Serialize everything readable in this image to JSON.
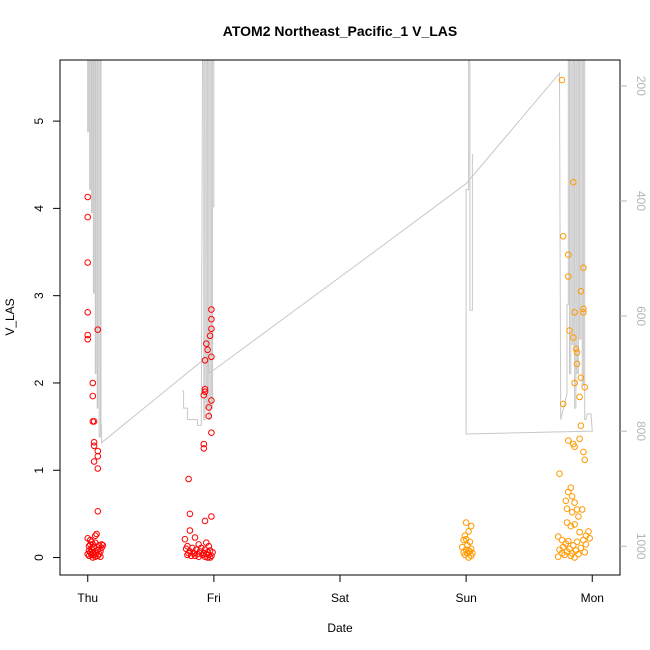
{
  "chart_data": {
    "type": "scatter",
    "title": "ATOM2 Northeast_Pacific_1 V_LAS",
    "xlabel": "Date",
    "ylabel": "V_LAS",
    "x_ticks": [
      "Thu",
      "Fri",
      "Sat",
      "Sun",
      "Mon"
    ],
    "x_tick_values": [
      0,
      1,
      2,
      3,
      4
    ],
    "xlim": [
      -0.22,
      4.22
    ],
    "ylim": [
      -0.2,
      5.7
    ],
    "y_ticks": [
      0,
      1,
      2,
      3,
      4,
      5
    ],
    "y2_ticks": [
      200,
      400,
      600,
      800,
      1000
    ],
    "y2lim": [
      1050,
      155
    ],
    "y2_reversed": true,
    "grid": false,
    "colors": {
      "red": "#ff0000",
      "orange": "#ff9900",
      "line": "#c8c8c8",
      "axis": "#000000",
      "axis2": "#b5b5b5"
    },
    "series": [
      {
        "color": "red",
        "points": [
          [
            0.0,
            4.13
          ],
          [
            0.0,
            3.9
          ],
          [
            0.0,
            3.38
          ],
          [
            0.0,
            2.81
          ],
          [
            0.0,
            2.55
          ],
          [
            0.0,
            2.5
          ],
          [
            0.04,
            2.0
          ],
          [
            0.04,
            1.85
          ],
          [
            0.04,
            1.56
          ],
          [
            0.05,
            1.56
          ],
          [
            0.05,
            1.32
          ],
          [
            0.05,
            1.28
          ],
          [
            0.08,
            2.61
          ],
          [
            0.08,
            1.22
          ],
          [
            0.08,
            1.16
          ],
          [
            0.05,
            1.1
          ],
          [
            0.08,
            1.02
          ],
          [
            0.08,
            0.53
          ],
          [
            0.07,
            0.27
          ],
          [
            0.06,
            0.25
          ],
          [
            0.0,
            0.22
          ],
          [
            0.02,
            0.2
          ],
          [
            0.03,
            0.18
          ],
          [
            0.06,
            0.17
          ],
          [
            0.02,
            0.15
          ],
          [
            0.04,
            0.15
          ],
          [
            0.11,
            0.15
          ],
          [
            0.12,
            0.14
          ],
          [
            0.09,
            0.14
          ],
          [
            0.01,
            0.13
          ],
          [
            0.05,
            0.12
          ],
          [
            0.11,
            0.11
          ],
          [
            0.03,
            0.1
          ],
          [
            0.08,
            0.09
          ],
          [
            0.01,
            0.08
          ],
          [
            0.06,
            0.07
          ],
          [
            0.1,
            0.07
          ],
          [
            0.02,
            0.06
          ],
          [
            0.07,
            0.05
          ],
          [
            0.04,
            0.05
          ],
          [
            0.0,
            0.04
          ],
          [
            0.09,
            0.04
          ],
          [
            0.03,
            0.03
          ],
          [
            0.05,
            0.03
          ],
          [
            0.08,
            0.02
          ],
          [
            0.01,
            0.02
          ],
          [
            0.06,
            0.01
          ],
          [
            0.1,
            0.01
          ],
          [
            0.04,
            0.0
          ],
          [
            0.98,
            2.84
          ],
          [
            0.98,
            2.73
          ],
          [
            0.98,
            2.62
          ],
          [
            0.97,
            2.54
          ],
          [
            0.94,
            2.45
          ],
          [
            0.95,
            2.38
          ],
          [
            0.98,
            2.3
          ],
          [
            0.93,
            2.26
          ],
          [
            0.93,
            1.93
          ],
          [
            0.93,
            1.9
          ],
          [
            0.92,
            1.86
          ],
          [
            0.98,
            1.8
          ],
          [
            0.96,
            1.72
          ],
          [
            0.96,
            1.62
          ],
          [
            0.98,
            1.43
          ],
          [
            0.92,
            1.3
          ],
          [
            0.92,
            1.25
          ],
          [
            0.8,
            0.9
          ],
          [
            0.81,
            0.5
          ],
          [
            0.98,
            0.47
          ],
          [
            0.93,
            0.42
          ],
          [
            0.81,
            0.31
          ],
          [
            0.85,
            0.23
          ],
          [
            0.77,
            0.21
          ],
          [
            0.94,
            0.17
          ],
          [
            0.88,
            0.15
          ],
          [
            0.79,
            0.13
          ],
          [
            0.96,
            0.13
          ],
          [
            0.83,
            0.11
          ],
          [
            0.9,
            0.11
          ],
          [
            0.78,
            0.1
          ],
          [
            0.86,
            0.09
          ],
          [
            0.93,
            0.09
          ],
          [
            0.97,
            0.08
          ],
          [
            0.81,
            0.07
          ],
          [
            0.89,
            0.07
          ],
          [
            0.95,
            0.06
          ],
          [
            0.99,
            0.06
          ],
          [
            0.8,
            0.05
          ],
          [
            0.84,
            0.05
          ],
          [
            0.92,
            0.05
          ],
          [
            0.87,
            0.04
          ],
          [
            0.94,
            0.04
          ],
          [
            0.96,
            0.03
          ],
          [
            0.79,
            0.03
          ],
          [
            0.91,
            0.03
          ],
          [
            0.85,
            0.02
          ],
          [
            0.98,
            0.02
          ],
          [
            0.82,
            0.02
          ],
          [
            0.93,
            0.01
          ],
          [
            0.88,
            0.01
          ],
          [
            0.95,
            0.0
          ],
          [
            0.97,
            0.0
          ]
        ]
      },
      {
        "color": "orange",
        "points": [
          [
            3.0,
            0.4
          ],
          [
            3.04,
            0.36
          ],
          [
            3.02,
            0.3
          ],
          [
            2.99,
            0.25
          ],
          [
            3.0,
            0.21
          ],
          [
            2.98,
            0.2
          ],
          [
            3.03,
            0.18
          ],
          [
            3.01,
            0.14
          ],
          [
            2.97,
            0.12
          ],
          [
            3.04,
            0.1
          ],
          [
            3.0,
            0.09
          ],
          [
            3.02,
            0.08
          ],
          [
            3.03,
            0.07
          ],
          [
            2.98,
            0.06
          ],
          [
            3.05,
            0.05
          ],
          [
            3.01,
            0.05
          ],
          [
            2.99,
            0.03
          ],
          [
            3.04,
            0.02
          ],
          [
            3.02,
            0.0
          ],
          [
            3.76,
            5.47
          ],
          [
            3.85,
            4.3
          ],
          [
            3.77,
            3.68
          ],
          [
            3.81,
            3.47
          ],
          [
            3.81,
            3.22
          ],
          [
            3.93,
            3.32
          ],
          [
            3.91,
            3.05
          ],
          [
            3.93,
            2.85
          ],
          [
            3.93,
            2.81
          ],
          [
            3.86,
            2.81
          ],
          [
            3.82,
            2.6
          ],
          [
            3.85,
            2.52
          ],
          [
            3.87,
            2.39
          ],
          [
            3.88,
            2.35
          ],
          [
            3.88,
            2.22
          ],
          [
            3.91,
            2.06
          ],
          [
            3.86,
            2.0
          ],
          [
            3.94,
            1.95
          ],
          [
            3.9,
            1.84
          ],
          [
            3.77,
            1.76
          ],
          [
            3.91,
            1.51
          ],
          [
            3.81,
            1.34
          ],
          [
            3.85,
            1.3
          ],
          [
            3.9,
            1.36
          ],
          [
            3.86,
            1.27
          ],
          [
            3.93,
            1.21
          ],
          [
            3.94,
            1.12
          ],
          [
            3.74,
            0.96
          ],
          [
            3.83,
            0.8
          ],
          [
            3.81,
            0.75
          ],
          [
            3.84,
            0.7
          ],
          [
            3.79,
            0.65
          ],
          [
            3.86,
            0.63
          ],
          [
            3.8,
            0.56
          ],
          [
            3.88,
            0.55
          ],
          [
            3.92,
            0.55
          ],
          [
            3.84,
            0.52
          ],
          [
            3.89,
            0.47
          ],
          [
            3.8,
            0.4
          ],
          [
            3.86,
            0.38
          ],
          [
            3.83,
            0.36
          ],
          [
            3.97,
            0.3
          ],
          [
            3.9,
            0.29
          ],
          [
            3.95,
            0.25
          ],
          [
            3.73,
            0.24
          ],
          [
            3.98,
            0.22
          ],
          [
            3.76,
            0.2
          ],
          [
            3.93,
            0.2
          ],
          [
            3.81,
            0.19
          ],
          [
            3.88,
            0.18
          ],
          [
            3.79,
            0.16
          ],
          [
            3.95,
            0.15
          ],
          [
            3.85,
            0.14
          ],
          [
            3.77,
            0.12
          ],
          [
            3.91,
            0.11
          ],
          [
            3.82,
            0.1
          ],
          [
            3.74,
            0.09
          ],
          [
            3.87,
            0.08
          ],
          [
            3.8,
            0.07
          ],
          [
            3.94,
            0.06
          ],
          [
            3.76,
            0.05
          ],
          [
            3.84,
            0.05
          ],
          [
            3.89,
            0.04
          ],
          [
            3.78,
            0.03
          ],
          [
            3.83,
            0.02
          ],
          [
            3.73,
            0.01
          ],
          [
            3.86,
            0.0
          ]
        ]
      }
    ],
    "depth_line": [
      [
        0.0,
        155
      ],
      [
        0.0,
        280
      ],
      [
        0.005,
        280
      ],
      [
        0.005,
        155
      ],
      [
        0.015,
        155
      ],
      [
        0.015,
        380
      ],
      [
        0.02,
        380
      ],
      [
        0.02,
        155
      ],
      [
        0.03,
        155
      ],
      [
        0.03,
        420
      ],
      [
        0.035,
        420
      ],
      [
        0.035,
        155
      ],
      [
        0.045,
        155
      ],
      [
        0.045,
        560
      ],
      [
        0.05,
        560
      ],
      [
        0.05,
        155
      ],
      [
        0.06,
        155
      ],
      [
        0.06,
        700
      ],
      [
        0.065,
        700
      ],
      [
        0.065,
        155
      ],
      [
        0.075,
        155
      ],
      [
        0.075,
        760
      ],
      [
        0.08,
        760
      ],
      [
        0.08,
        155
      ],
      [
        0.09,
        155
      ],
      [
        0.09,
        810
      ],
      [
        0.1,
        810
      ],
      [
        0.1,
        155
      ],
      [
        0.105,
        155
      ],
      [
        0.105,
        790
      ],
      [
        0.11,
        790
      ],
      [
        0.11,
        820
      ],
      [
        0.95,
        670
      ],
      [
        0.96,
        700
      ],
      [
        2.2,
        500
      ],
      [
        3.0,
        370
      ],
      [
        3.74,
        178
      ],
      [
        3.75,
        780
      ],
      [
        3.8,
        735
      ],
      [
        3.8,
        580
      ],
      [
        3.81,
        580
      ],
      [
        3.81,
        155
      ],
      [
        3.82,
        155
      ],
      [
        3.82,
        700
      ],
      [
        3.83,
        700
      ],
      [
        3.83,
        155
      ],
      [
        3.84,
        155
      ],
      [
        3.84,
        650
      ],
      [
        3.85,
        650
      ],
      [
        3.85,
        155
      ],
      [
        3.86,
        155
      ],
      [
        3.86,
        760
      ],
      [
        3.87,
        760
      ],
      [
        3.87,
        155
      ],
      [
        3.88,
        155
      ],
      [
        3.88,
        700
      ],
      [
        3.89,
        700
      ],
      [
        3.89,
        155
      ],
      [
        3.9,
        155
      ],
      [
        3.9,
        640
      ],
      [
        3.91,
        640
      ],
      [
        3.91,
        155
      ],
      [
        3.92,
        155
      ],
      [
        3.92,
        720
      ],
      [
        3.93,
        720
      ],
      [
        3.93,
        155
      ],
      [
        3.94,
        155
      ],
      [
        3.94,
        780
      ],
      [
        3.95,
        780
      ],
      [
        3.96,
        770
      ],
      [
        3.99,
        770
      ],
      [
        4.0,
        800
      ],
      [
        3.0,
        805
      ],
      [
        3.0,
        380
      ],
      [
        3.02,
        380
      ],
      [
        3.02,
        155
      ],
      [
        3.03,
        155
      ],
      [
        3.03,
        590
      ],
      [
        3.05,
        590
      ],
      [
        3.05,
        320
      ],
      [
        3.06,
        320
      ]
    ],
    "depth_line_fri": [
      [
        0.75,
        730
      ],
      [
        0.76,
        730
      ],
      [
        0.76,
        760
      ],
      [
        0.79,
        760
      ],
      [
        0.79,
        780
      ],
      [
        0.83,
        780
      ],
      [
        0.83,
        780
      ],
      [
        0.87,
        780
      ],
      [
        0.87,
        790
      ],
      [
        0.9,
        790
      ],
      [
        0.91,
        155
      ],
      [
        0.92,
        155
      ],
      [
        0.92,
        780
      ],
      [
        0.93,
        780
      ],
      [
        0.93,
        155
      ],
      [
        0.94,
        155
      ],
      [
        0.94,
        760
      ],
      [
        0.95,
        760
      ],
      [
        0.95,
        155
      ],
      [
        0.96,
        155
      ],
      [
        0.96,
        780
      ],
      [
        0.97,
        780
      ],
      [
        0.97,
        155
      ],
      [
        0.98,
        155
      ],
      [
        0.98,
        760
      ],
      [
        0.99,
        760
      ],
      [
        0.99,
        155
      ],
      [
        1.0,
        155
      ],
      [
        1.0,
        410
      ],
      [
        0.99,
        410
      ]
    ]
  }
}
